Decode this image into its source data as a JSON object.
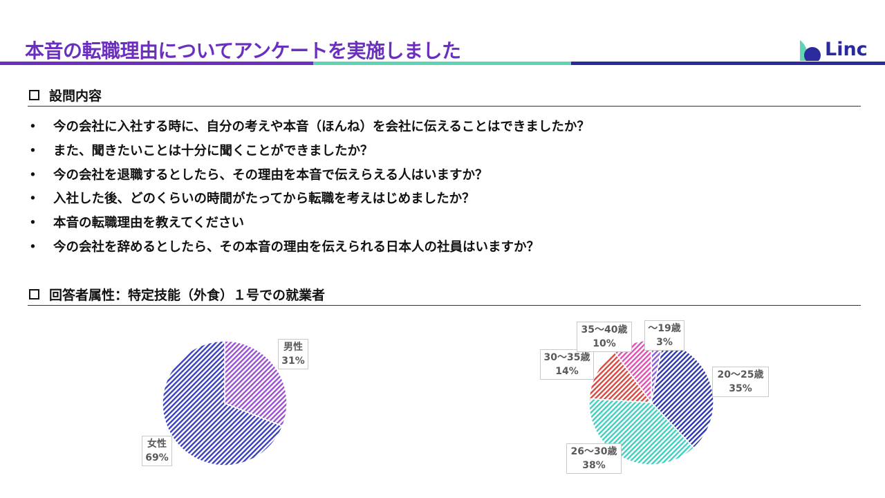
{
  "header": {
    "title": "本音の転職理由についてアンケートを実施しました",
    "logo_text": "Linc",
    "bar_colors": [
      "#6a2fbf",
      "#5fd3b4",
      "#2b2a9c"
    ]
  },
  "questions": {
    "heading": "設問内容",
    "items": [
      "今の会社に入社する時に、自分の考えや本音（ほんね）を会社に伝えることはできましたか？",
      "また、聞きたいことは十分に聞くことができましたか？",
      "今の会社を退職するとしたら、その理由を本音で伝えらえる人はいますか？",
      "入社した後、どのくらいの時間がたってから転職を考えはじめましたか？",
      "本音の転職理由を教えてください",
      "今の会社を辞めるとしたら、その本音の理由を伝えられる日本人の社員はいますか？"
    ]
  },
  "respondents": {
    "heading": "回答者属性：特定技能（外食）１号での就業者"
  },
  "chart_data": [
    {
      "type": "pie",
      "title": "",
      "slices": [
        {
          "label": "男性",
          "value": 31,
          "display": "31%",
          "color": "#9b4fd4"
        },
        {
          "label": "女性",
          "value": 69,
          "display": "69%",
          "color": "#3a3fbf"
        }
      ]
    },
    {
      "type": "pie",
      "title": "",
      "slices": [
        {
          "label": "～19歳",
          "value": 3,
          "display": "3%",
          "color": "#8a5ad8"
        },
        {
          "label": "20～25歳",
          "value": 35,
          "display": "35%",
          "color": "#2e36b0"
        },
        {
          "label": "26～30歳",
          "value": 38,
          "display": "38%",
          "color": "#3fcfbf"
        },
        {
          "label": "30～35歳",
          "value": 14,
          "display": "14%",
          "color": "#d9483f"
        },
        {
          "label": "35～40歳",
          "value": 10,
          "display": "10%",
          "color": "#e04fb5"
        }
      ]
    }
  ]
}
